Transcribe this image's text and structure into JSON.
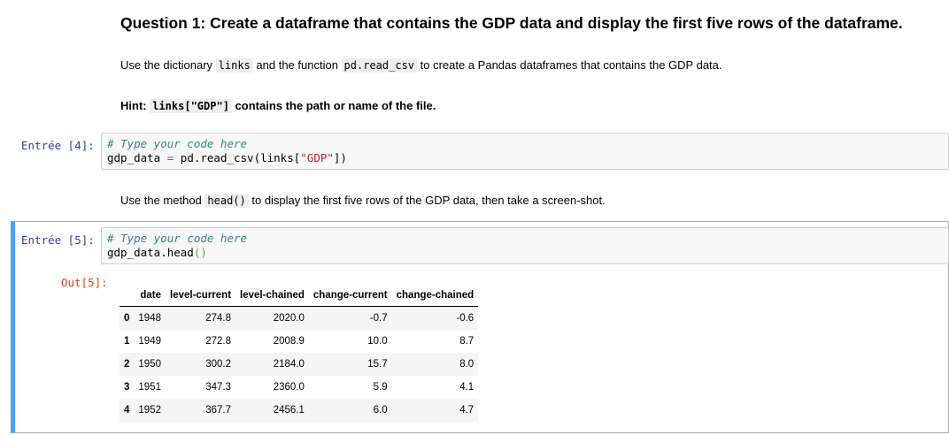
{
  "question": {
    "title": "Question 1: Create a dataframe that contains the GDP data and display the first five rows of the dataframe.",
    "instr_pre": "Use the dictionary ",
    "instr_code1": "links",
    "instr_mid": " and the function ",
    "instr_code2": "pd.read_csv",
    "instr_post": " to create a Pandas dataframes that contains the GDP data.",
    "hint_pre": "Hint: ",
    "hint_code": "links[\"GDP\"]",
    "hint_post": " contains the path or name of the file."
  },
  "cell4": {
    "prompt": "Entrée [4]:",
    "comment": "# Type your code here",
    "line2_var": "gdp_data ",
    "line2_op": "=",
    "line2_call": " pd.read_csv(links[",
    "line2_str": "\"GDP\"",
    "line2_end": "])"
  },
  "instruction2": {
    "pre": "Use the method ",
    "code": "head()",
    "post": " to display the first five rows of the GDP data, then take a screen-shot."
  },
  "cell5": {
    "prompt": "Entrée [5]:",
    "comment": "# Type your code here",
    "line2_var": "gdp_data.head",
    "line2_paren": "()",
    "out_prompt": "Out[5]:"
  },
  "table": {
    "columns": [
      "",
      "date",
      "level-current",
      "level-chained",
      "change-current",
      "change-chained"
    ],
    "rows": [
      [
        "0",
        "1948",
        "274.8",
        "2020.0",
        "-0.7",
        "-0.6"
      ],
      [
        "1",
        "1949",
        "272.8",
        "2008.9",
        "10.0",
        "8.7"
      ],
      [
        "2",
        "1950",
        "300.2",
        "2184.0",
        "15.7",
        "8.0"
      ],
      [
        "3",
        "1951",
        "347.3",
        "2360.0",
        "5.9",
        "4.1"
      ],
      [
        "4",
        "1952",
        "367.7",
        "2456.1",
        "6.0",
        "4.7"
      ]
    ]
  }
}
